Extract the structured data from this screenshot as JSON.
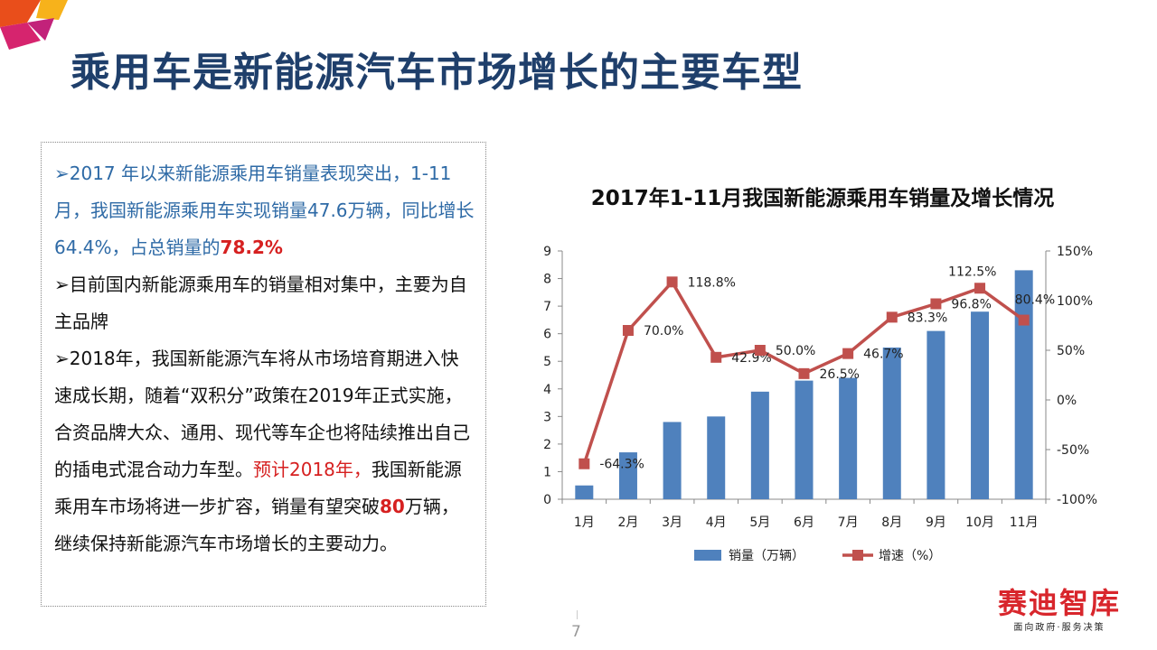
{
  "title": "乘用车是新能源汽车市场增长的主要车型",
  "text": {
    "p1_a": "➢2017 年以来新能源乘用车销量表现突出，1-11月，我国新能源乘用车实现销量47.6万辆，同比增长64.4%，占总销量的",
    "p1_b": "78.2%",
    "p2": "➢目前国内新能源乘用车的销量相对集中，主要为自主品牌",
    "p3": "➢2018年，我国新能源汽车将从市场培育期进入快速成长期，随着“双积分”政策在2019年正式实施，合资品牌大众、通用、现代等车企也将陆续推出自己的插电式混合动力车型。",
    "p3_red": "预计2018年，",
    "p3_c": "我国新能源乘用车市场将进一步扩容，销量有望突破",
    "p3_d": "80",
    "p3_e": "万辆，继续保持新能源汽车市场增长的主要动力。"
  },
  "page_number": "7",
  "brand": {
    "name": "赛迪智库",
    "slogan": "面向政府·服务决策"
  },
  "chart_data": {
    "type": "bar+line",
    "title": "2017年1-11月我国新能源乘用车销量及增长情况",
    "categories": [
      "1月",
      "2月",
      "3月",
      "4月",
      "5月",
      "6月",
      "7月",
      "8月",
      "9月",
      "10月",
      "11月"
    ],
    "series": [
      {
        "name": "销量（万辆）",
        "type": "bar",
        "axis": "left",
        "color": "#4f81bd",
        "values": [
          0.5,
          1.7,
          2.8,
          3.0,
          3.9,
          4.3,
          4.4,
          5.5,
          6.1,
          6.8,
          8.3
        ]
      },
      {
        "name": "增速（%）",
        "type": "line",
        "axis": "right",
        "color": "#c0504d",
        "values": [
          -64.3,
          70.0,
          118.8,
          42.9,
          50.0,
          26.5,
          46.7,
          83.3,
          96.8,
          112.5,
          80.4
        ],
        "labels": [
          "-64.3%",
          "70.0%",
          "118.8%",
          "42.9%",
          "50.0%",
          "26.5%",
          "46.7%",
          "83.3%",
          "96.8%",
          "112.5%",
          "80.4%"
        ]
      }
    ],
    "ylim": [
      0,
      9
    ],
    "yticks": [
      "0",
      "1",
      "2",
      "3",
      "4",
      "5",
      "6",
      "7",
      "8",
      "9"
    ],
    "y2lim": [
      -100,
      150
    ],
    "y2ticks": [
      "-100%",
      "-50%",
      "0%",
      "50%",
      "100%",
      "150%"
    ],
    "legend": "bottom"
  }
}
